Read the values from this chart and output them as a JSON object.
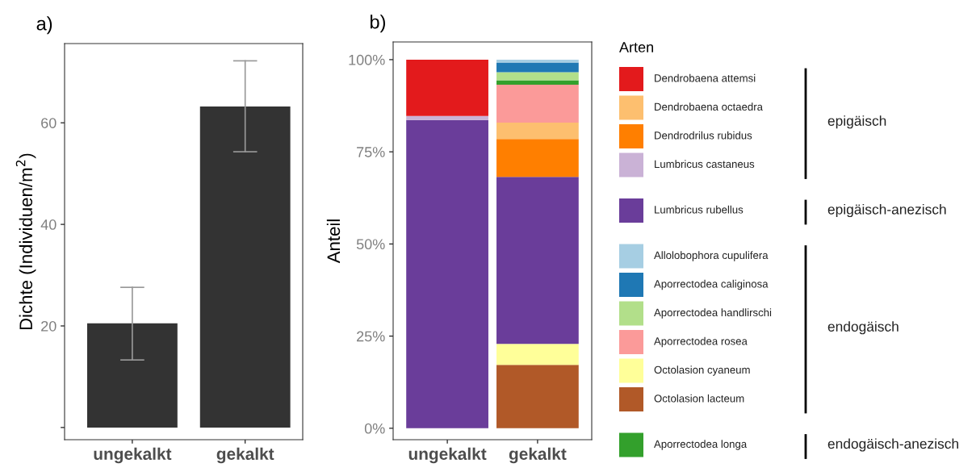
{
  "chart_data": [
    {
      "type": "bar",
      "title": "a)",
      "ylabel": "Dichte (Individuen/m$^{2}$)",
      "categories": [
        "ungekalkt",
        "gekalkt"
      ],
      "values": [
        20.5,
        63.2
      ],
      "errors": [
        [
          13.3,
          27.6
        ],
        [
          54.3,
          72.2
        ]
      ],
      "color": "#333333",
      "ylim": [
        -2.4,
        75.6
      ],
      "yticks": [
        {
          "value": 0,
          "label": null
        },
        20,
        40,
        60
      ],
      "grid": false,
      "legend": false
    },
    {
      "type": "bar",
      "title": "b)",
      "ylabel": "Anteil",
      "stacked": true,
      "legend": "right",
      "legend_title": "Arten",
      "categories": [
        "ungekalkt",
        "gekalkt"
      ],
      "ylim": [
        -3.1,
        104.8
      ],
      "yticks": [
        {
          "value": 0,
          "label": "0%"
        },
        {
          "value": 25,
          "label": "25%"
        },
        {
          "value": 50,
          "label": "50%"
        },
        {
          "value": 75,
          "label": "75%"
        },
        {
          "value": 100,
          "label": "100%"
        }
      ],
      "grid": false,
      "annotations": [
        "epigäisch",
        "epigäisch-anezisch",
        "endogäisch",
        "endogäisch-anezisch"
      ],
      "series": [
        {
          "name": "Octolasion lacteum",
          "color": "#b15928",
          "values": [
            null,
            17.2
          ]
        },
        {
          "name": "Octolasion cyaneum",
          "color": "#ffff99",
          "values": [
            null,
            5.7
          ]
        },
        {
          "name": "Lumbricus rubellus",
          "color": "#6a3d9a",
          "values": [
            83.6,
            45.3
          ]
        },
        {
          "name": "Lumbricus castaneus",
          "color": "#cab2d6",
          "values": [
            1.1,
            null
          ]
        },
        {
          "name": "Dendrodrilus rubidus",
          "color": "#ff7f00",
          "values": [
            null,
            10.3
          ]
        },
        {
          "name": "Dendrobaena octaedra",
          "color": "#fdbf6f",
          "values": [
            null,
            4.4
          ]
        },
        {
          "name": "Aporrectodea rosea",
          "color": "#fb9a99",
          "values": [
            null,
            10.3
          ]
        },
        {
          "name": "Aporrectodea longa",
          "color": "#33a02c",
          "values": [
            null,
            1.2
          ]
        },
        {
          "name": "Aporrectodea handlirschi",
          "color": "#b2df8a",
          "values": [
            null,
            2.2
          ]
        },
        {
          "name": "Aporrectodea caliginosa",
          "color": "#1f78b4",
          "values": [
            null,
            2.6
          ]
        },
        {
          "name": "Allolobophora cupulifera",
          "color": "#a6cee3",
          "values": [
            null,
            0.8
          ]
        },
        {
          "name": "Dendrobaena attemsi",
          "color": "#e31a1c",
          "values": [
            15.3,
            null
          ]
        }
      ]
    }
  ]
}
